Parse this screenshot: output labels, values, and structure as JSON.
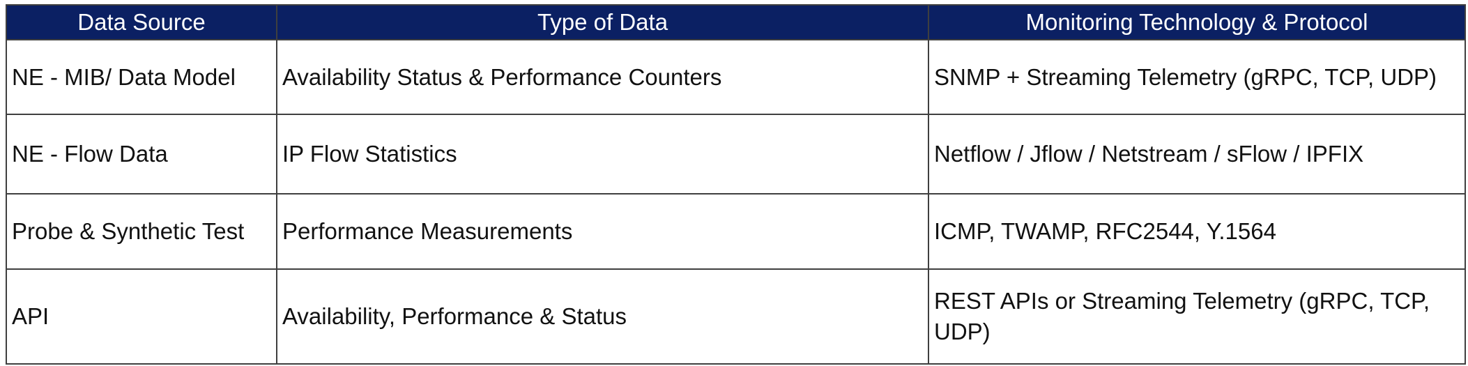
{
  "table": {
    "headers": [
      "Data Source",
      "Type of Data",
      "Monitoring Technology & Protocol"
    ],
    "rows": [
      {
        "source": "NE - MIB/ Data Model",
        "type": "Availability Status & Performance Counters",
        "tech": "SNMP + Streaming Telemetry (gRPC, TCP, UDP)"
      },
      {
        "source": "NE - Flow Data",
        "type": "IP Flow Statistics",
        "tech": "Netflow / Jflow / Netstream / sFlow / IPFIX"
      },
      {
        "source": "Probe & Synthetic Test",
        "type": "Performance Measurements",
        "tech": "ICMP, TWAMP, RFC2544, Y.1564"
      },
      {
        "source": "API",
        "type": "Availability, Performance & Status",
        "tech": "REST APIs or Streaming Telemetry (gRPC, TCP, UDP)"
      }
    ]
  },
  "colors": {
    "header_bg": "#0b2063",
    "header_text": "#ffffff",
    "border": "#3f3f3f",
    "cell_text": "#111111"
  }
}
